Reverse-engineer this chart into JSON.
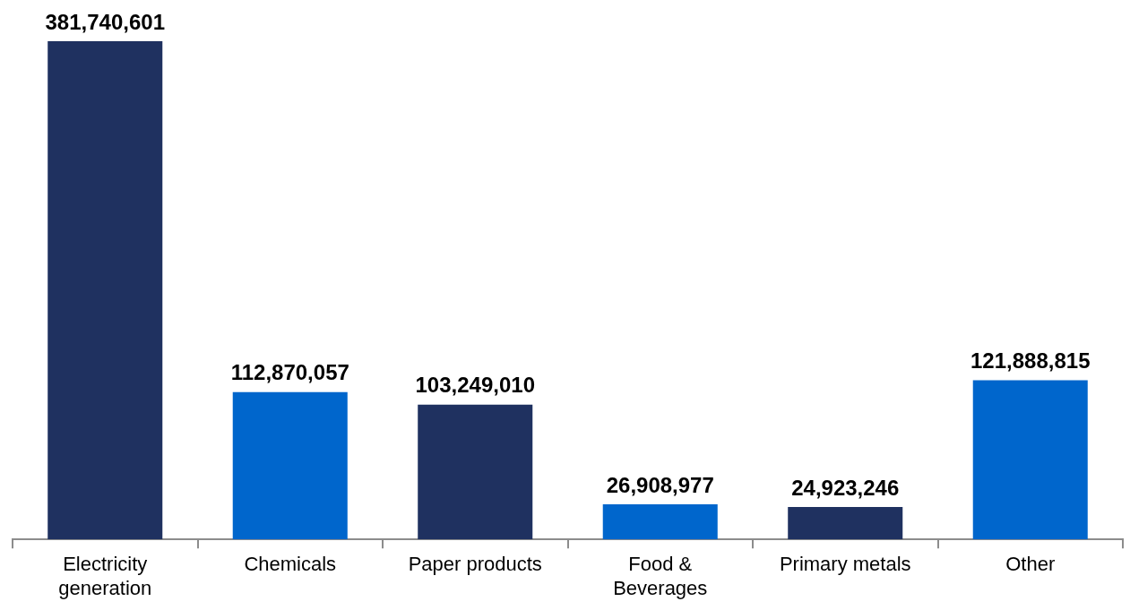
{
  "chart_data": {
    "type": "bar",
    "categories": [
      "Electricity generation",
      "Chemicals",
      "Paper products",
      "Food & Beverages",
      "Primary metals",
      "Other"
    ],
    "values": [
      381740601,
      112870057,
      103249010,
      26908977,
      24923246,
      121888815
    ],
    "colors": [
      "#1f3160",
      "#0066cc",
      "#1f3160",
      "#0066cc",
      "#1f3160",
      "#0066cc"
    ],
    "value_labels": [
      "381,740,601",
      "112,870,057",
      "103,249,010",
      "26,908,977",
      "24,923,246",
      "121,888,815"
    ]
  }
}
